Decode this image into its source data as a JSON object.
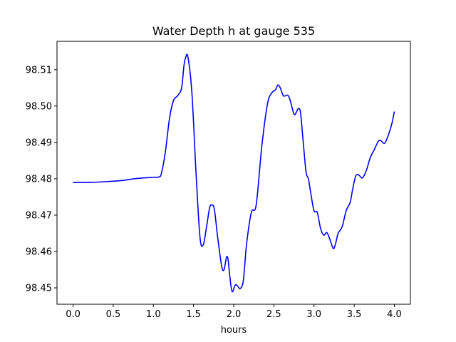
{
  "chart_data": {
    "type": "line",
    "title": "Water Depth h at gauge 535",
    "xlabel": "hours",
    "ylabel": "",
    "xlim": [
      -0.2,
      4.2
    ],
    "ylim": [
      98.4455,
      98.5178
    ],
    "grid": false,
    "x_ticks": [
      0.0,
      0.5,
      1.0,
      1.5,
      2.0,
      2.5,
      3.0,
      3.5,
      4.0
    ],
    "x_tick_labels": [
      "0.0",
      "0.5",
      "1.0",
      "1.5",
      "2.0",
      "2.5",
      "3.0",
      "3.5",
      "4.0"
    ],
    "y_ticks": [
      98.45,
      98.46,
      98.47,
      98.48,
      98.49,
      98.5,
      98.51
    ],
    "y_tick_labels": [
      "98.45",
      "98.46",
      "98.47",
      "98.48",
      "98.49",
      "98.50",
      "98.51"
    ],
    "series": [
      {
        "color": "#0000ff",
        "x": [
          0.0,
          0.2,
          0.4,
          0.6,
          0.7,
          0.8,
          1.0,
          1.07,
          1.1,
          1.15,
          1.2,
          1.25,
          1.3,
          1.35,
          1.38,
          1.4,
          1.43,
          1.48,
          1.53,
          1.58,
          1.62,
          1.66,
          1.7,
          1.73,
          1.76,
          1.8,
          1.85,
          1.88,
          1.91,
          1.93,
          1.95,
          1.98,
          2.02,
          2.05,
          2.08,
          2.12,
          2.16,
          2.22,
          2.28,
          2.35,
          2.42,
          2.47,
          2.52,
          2.55,
          2.58,
          2.62,
          2.67,
          2.7,
          2.75,
          2.78,
          2.8,
          2.83,
          2.86,
          2.9,
          2.93,
          2.96,
          3.0,
          3.04,
          3.08,
          3.12,
          3.16,
          3.2,
          3.24,
          3.27,
          3.3,
          3.35,
          3.4,
          3.45,
          3.48,
          3.52,
          3.56,
          3.6,
          3.65,
          3.7,
          3.75,
          3.8,
          3.83,
          3.88,
          3.93,
          3.97,
          4.0
        ],
        "y": [
          98.479,
          98.479,
          98.4792,
          98.4795,
          98.4798,
          98.4801,
          98.4804,
          98.4805,
          98.4815,
          98.4875,
          98.4965,
          98.5015,
          98.5028,
          98.5048,
          98.511,
          98.5132,
          98.5135,
          98.5035,
          98.482,
          98.464,
          98.4618,
          98.4665,
          98.472,
          98.4728,
          98.4715,
          98.464,
          98.456,
          98.455,
          98.4584,
          98.4578,
          98.4535,
          98.449,
          98.4508,
          98.4505,
          98.4498,
          98.452,
          98.462,
          98.4708,
          98.4728,
          98.489,
          98.5005,
          98.5035,
          98.5045,
          98.5058,
          98.505,
          98.5028,
          98.503,
          98.5018,
          98.4978,
          98.4983,
          98.4992,
          98.4985,
          98.4915,
          98.482,
          98.48,
          98.476,
          98.4712,
          98.4708,
          98.4665,
          98.4645,
          98.4652,
          98.4632,
          98.4608,
          98.4623,
          98.465,
          98.4668,
          98.4712,
          98.4735,
          98.477,
          98.4808,
          98.481,
          98.4802,
          98.4822,
          98.4858,
          98.488,
          98.4903,
          98.4905,
          98.4898,
          98.4923,
          98.4952,
          98.4985
        ]
      }
    ]
  }
}
